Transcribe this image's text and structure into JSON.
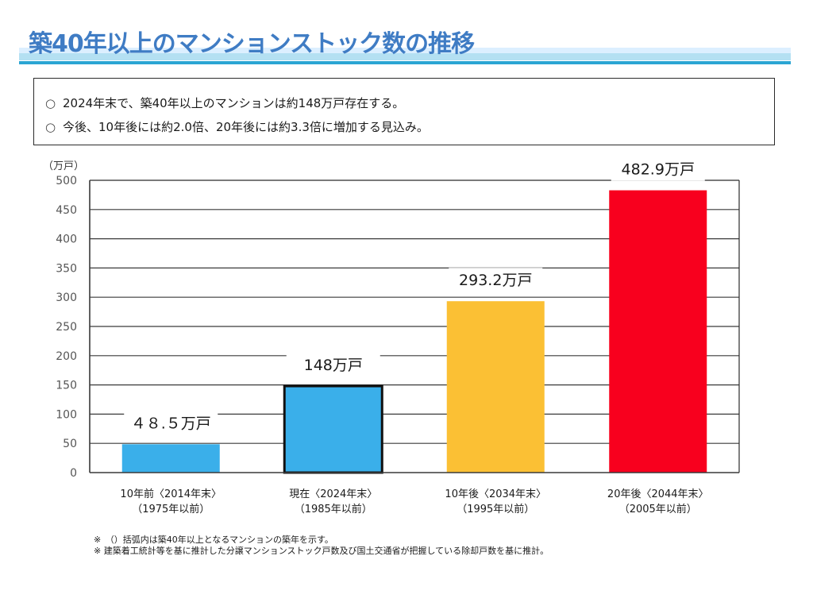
{
  "header": {
    "title": "築40年以上のマンションストック数の推移"
  },
  "summary": {
    "bullet_icon": "○",
    "lines": [
      "2024年末で、築40年以上のマンションは約148万戸存在する。",
      "今後、10年後には約2.0倍、20年後には約3.3倍に増加する見込み。"
    ]
  },
  "chart_data": {
    "type": "bar",
    "title": "",
    "ylabel": "（万戸）",
    "xlabel": "",
    "ylim": [
      0,
      500
    ],
    "yticks": [
      0,
      50,
      100,
      150,
      200,
      250,
      300,
      350,
      400,
      450,
      500
    ],
    "grid": true,
    "categories": [
      [
        "10年前〈2014年末〉",
        "（1975年以前）"
      ],
      [
        "現在〈2024年末〉",
        "（1985年以前）"
      ],
      [
        "10年後〈2034年末〉",
        "（1995年以前）"
      ],
      [
        "20年後〈2044年末〉",
        "（2005年以前）"
      ]
    ],
    "values": [
      48.5,
      148,
      293.2,
      482.9
    ],
    "data_labels": [
      "４８.５万戸",
      "148万戸",
      "293.2万戸",
      "482.9万戸"
    ],
    "colors": [
      "#3aafea",
      "#3aafea",
      "#fbc034",
      "#f8001e"
    ],
    "highlighted_index": 1,
    "legend": "none"
  },
  "notes": [
    "※　（）括弧内は築40年以上となるマンションの築年を示す。",
    "※ 建築着工統計等を基に推計した分譲マンションストック戸数及び国土交通省が把握している除却戸数を基に推計。"
  ]
}
